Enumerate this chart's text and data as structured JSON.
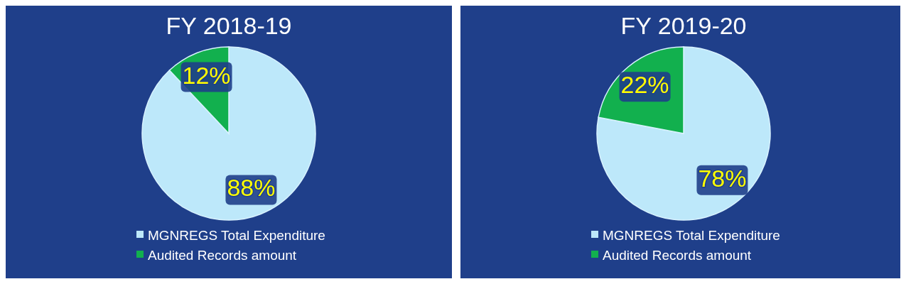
{
  "chart_data": [
    {
      "type": "pie",
      "title": "FY 2018-19",
      "categories": [
        "MGNREGS Total Expenditure",
        "Audited Records amount"
      ],
      "values": [
        88,
        12
      ],
      "colors": [
        "#bde8fa",
        "#12b04e"
      ],
      "value_labels": [
        "88%",
        "12%"
      ],
      "legend": "bottom"
    },
    {
      "type": "pie",
      "title": "FY 2019-20",
      "categories": [
        "MGNREGS Total Expenditure",
        "Audited Records amount"
      ],
      "values": [
        78,
        22
      ],
      "colors": [
        "#bde8fa",
        "#12b04e"
      ],
      "value_labels": [
        "78%",
        "22%"
      ],
      "legend": "bottom"
    }
  ]
}
